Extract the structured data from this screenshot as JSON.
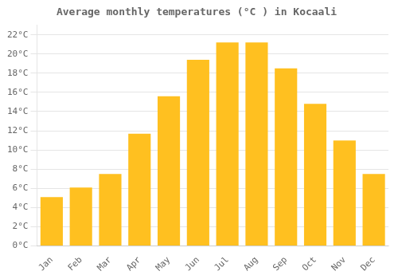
{
  "chart_data": {
    "type": "bar",
    "title": "Average monthly temperatures (°C ) in Kocaali",
    "categories": [
      "Jan",
      "Feb",
      "Mar",
      "Apr",
      "May",
      "Jun",
      "Jul",
      "Aug",
      "Sep",
      "Oct",
      "Nov",
      "Dec"
    ],
    "values": [
      5.1,
      6.1,
      7.5,
      11.7,
      15.6,
      19.4,
      21.2,
      21.2,
      18.5,
      14.8,
      11.0,
      7.5
    ],
    "color": "#FFC020",
    "ylim": [
      0,
      23
    ],
    "yticks": [
      {
        "value": 0,
        "label": "0°C"
      },
      {
        "value": 2,
        "label": "2°C"
      },
      {
        "value": 4,
        "label": "4°C"
      },
      {
        "value": 6,
        "label": "6°C"
      },
      {
        "value": 8,
        "label": "8°C"
      },
      {
        "value": 10,
        "label": "10°C"
      },
      {
        "value": 12,
        "label": "12°C"
      },
      {
        "value": 14,
        "label": "14°C"
      },
      {
        "value": 16,
        "label": "16°C"
      },
      {
        "value": 18,
        "label": "18°C"
      },
      {
        "value": 20,
        "label": "20°C"
      },
      {
        "value": 22,
        "label": "22°C"
      }
    ],
    "grid": true
  }
}
